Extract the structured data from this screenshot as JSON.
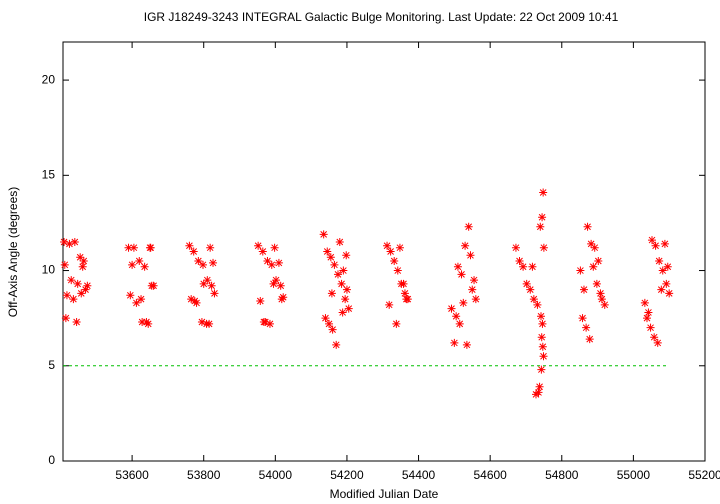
{
  "chart_data": {
    "type": "scatter",
    "title": "IGR J18249-3243   INTEGRAL Galactic Bulge Monitoring.  Last Update: 22 Oct 2009 10:41",
    "x_label": "Modified Julian Date",
    "y_label": "Off-Axis Angle (degrees)",
    "xlim": [
      53407,
      55200
    ],
    "ylim": [
      0,
      22
    ],
    "xticks": [
      53600,
      53800,
      54000,
      54200,
      54400,
      54600,
      54800,
      55000,
      55200
    ],
    "yticks": [
      0,
      5,
      10,
      15,
      20
    ],
    "hline": {
      "y": 5,
      "x": [
        53407,
        55095
      ],
      "color": "#00c000"
    },
    "series": [
      {
        "color": "#ff0000",
        "x": [
          53410,
          53425,
          53440,
          53455,
          53465,
          53412,
          53430,
          53448,
          53470,
          53418,
          53436,
          53458,
          53475,
          53415,
          53445,
          53462,
          53590,
          53605,
          53620,
          53635,
          53650,
          53660,
          53595,
          53612,
          53628,
          53645,
          53655,
          53600,
          53625,
          53640,
          53652,
          53760,
          53772,
          53785,
          53798,
          53810,
          53822,
          53830,
          53765,
          53780,
          53795,
          53808,
          53818,
          53826,
          53775,
          53800,
          53815,
          53952,
          53965,
          53978,
          53990,
          54002,
          54015,
          54022,
          53958,
          53972,
          53985,
          53998,
          54010,
          54018,
          53968,
          53995,
          54135,
          54145,
          54155,
          54165,
          54175,
          54185,
          54195,
          54205,
          54140,
          54150,
          54160,
          54170,
          54180,
          54190,
          54200,
          54158,
          54188,
          54198,
          54312,
          54322,
          54332,
          54342,
          54352,
          54362,
          54370,
          54318,
          54338,
          54348,
          54358,
          54366,
          54492,
          54500,
          54510,
          54520,
          54530,
          54540,
          54550,
          54560,
          54505,
          54515,
          54535,
          54545,
          54555,
          54525,
          54672,
          54682,
          54692,
          54702,
          54712,
          54722,
          54732,
          54740,
          54745,
          54748,
          54750,
          54742,
          54746,
          54744,
          54747,
          54749,
          54743,
          54738,
          54735,
          54728,
          54718,
          54852,
          54862,
          54872,
          54882,
          54892,
          54902,
          54912,
          54920,
          54858,
          54868,
          54878,
          54888,
          54898,
          54908,
          55032,
          55042,
          55052,
          55062,
          55072,
          55082,
          55092,
          55100,
          55038,
          55048,
          55058,
          55068,
          55078,
          55088,
          55096
        ],
        "values": [
          11.5,
          11.4,
          11.5,
          10.7,
          10.5,
          10.3,
          9.5,
          9.3,
          9.0,
          8.7,
          8.5,
          8.8,
          9.2,
          7.5,
          7.3,
          10.2,
          11.2,
          11.2,
          10.5,
          10.2,
          11.2,
          9.2,
          8.7,
          8.3,
          7.3,
          7.2,
          9.2,
          10.3,
          8.5,
          7.3,
          11.2,
          11.3,
          11.0,
          10.5,
          10.3,
          9.5,
          9.2,
          8.8,
          8.5,
          8.3,
          7.3,
          7.2,
          11.2,
          10.4,
          8.4,
          9.3,
          7.2,
          11.3,
          11.0,
          10.5,
          10.3,
          9.5,
          9.2,
          8.6,
          8.4,
          7.3,
          7.2,
          11.2,
          10.4,
          8.5,
          7.3,
          9.3,
          11.9,
          11.0,
          10.7,
          10.3,
          9.8,
          9.3,
          8.5,
          8.0,
          7.5,
          7.2,
          6.9,
          6.1,
          11.5,
          10.0,
          9.0,
          8.8,
          7.8,
          10.8,
          11.3,
          11.0,
          10.5,
          10.0,
          9.3,
          8.8,
          8.5,
          8.2,
          7.2,
          11.2,
          9.3,
          8.5,
          8.0,
          6.2,
          10.2,
          9.8,
          11.3,
          12.3,
          9.0,
          8.5,
          7.6,
          7.2,
          6.1,
          10.8,
          9.5,
          8.3,
          11.2,
          10.5,
          10.2,
          9.3,
          9.0,
          8.5,
          8.2,
          12.3,
          12.8,
          14.1,
          11.2,
          7.6,
          7.2,
          6.5,
          6.0,
          5.5,
          4.8,
          3.9,
          3.6,
          3.5,
          10.2,
          10.0,
          9.0,
          12.3,
          11.4,
          11.2,
          10.5,
          8.5,
          8.2,
          7.5,
          7.0,
          6.4,
          10.2,
          9.3,
          8.8,
          8.3,
          7.8,
          11.6,
          11.3,
          10.5,
          10.0,
          9.3,
          8.8,
          7.5,
          7.0,
          6.5,
          6.2,
          9.0,
          11.4,
          10.2
        ]
      }
    ]
  }
}
